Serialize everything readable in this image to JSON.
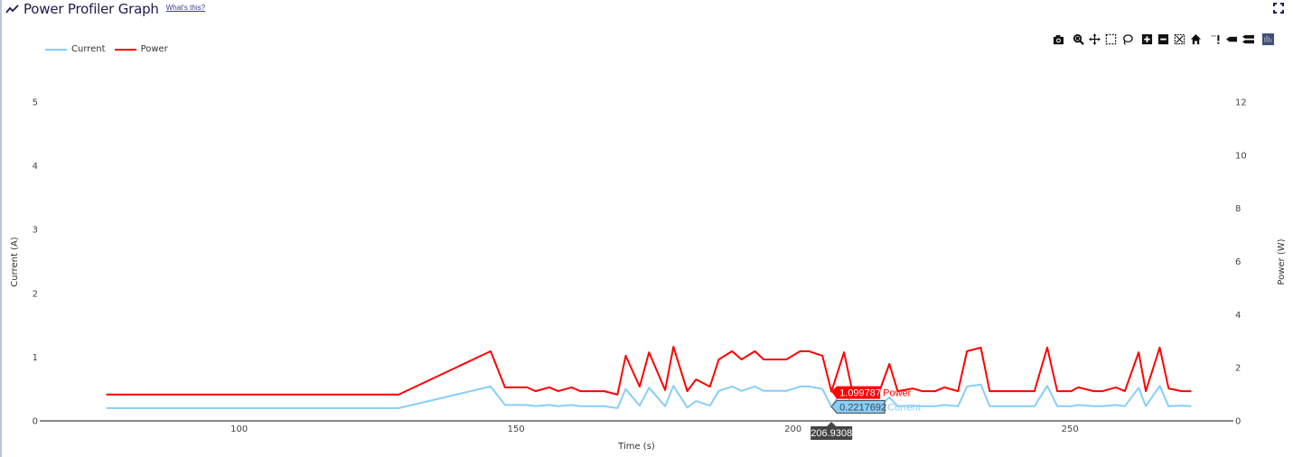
{
  "header": {
    "title": "Power Profiler Graph",
    "whats_this_link": "What's this?",
    "trend_icon": "trending-line-icon",
    "fullscreen_icon": "fullscreen-icon"
  },
  "legend": [
    {
      "label": "Current",
      "color": "#87cefa"
    },
    {
      "label": "Power",
      "color": "#ff0000"
    }
  ],
  "modebar": {
    "groups": [
      [
        {
          "name": "camera-icon",
          "title": "Download plot as a png"
        }
      ],
      [
        {
          "name": "zoom-icon",
          "title": "Zoom"
        },
        {
          "name": "pan-icon",
          "title": "Pan"
        },
        {
          "name": "box-select-icon",
          "title": "Box Select"
        },
        {
          "name": "lasso-select-icon",
          "title": "Lasso Select"
        }
      ],
      [
        {
          "name": "zoom-in-icon",
          "title": "Zoom in"
        },
        {
          "name": "zoom-out-icon",
          "title": "Zoom out"
        },
        {
          "name": "autoscale-icon",
          "title": "Autoscale"
        },
        {
          "name": "reset-axes-icon",
          "title": "Reset axes"
        }
      ],
      [
        {
          "name": "toggle-spikelines-icon",
          "title": "Toggle Spike Lines"
        },
        {
          "name": "hover-closest-icon",
          "title": "Show closest data on hover"
        },
        {
          "name": "hover-compare-icon",
          "title": "Compare data on hover"
        }
      ],
      [
        {
          "name": "plotly-logo-icon",
          "title": "Produced with Plotly"
        }
      ]
    ]
  },
  "hover": {
    "x_label": "206.9308",
    "power_value": "1.099787",
    "power_name": "Power",
    "current_value": "0.2217692",
    "current_name": "Current"
  },
  "colors": {
    "current": "#87cefa",
    "power": "#ff0000",
    "title": "#1e1a4d",
    "axis": "#444444",
    "hover_x_bg": "#444444"
  },
  "chart_data": {
    "type": "line",
    "title": "Power Profiler Graph",
    "xlabel": "Time (s)",
    "ylabel": "Current (A)",
    "y2label": "Power (W)",
    "xlim": [
      64,
      279.5
    ],
    "ylim": [
      0,
      5
    ],
    "y2lim": [
      0,
      12
    ],
    "xticks": [
      100,
      150,
      200,
      250
    ],
    "yticks": [
      0,
      1,
      2,
      3,
      4,
      5
    ],
    "y2ticks": [
      0,
      2,
      4,
      6,
      8,
      10,
      12
    ],
    "grid": false,
    "legend_position": "top-left",
    "x": [
      76.0,
      128.8,
      145.4,
      148.0,
      152.0,
      153.5,
      156.0,
      157.6,
      160.0,
      161.6,
      165.9,
      168.3,
      169.8,
      172.3,
      174.0,
      176.9,
      178.4,
      180.9,
      182.5,
      185.0,
      186.6,
      189.0,
      190.7,
      193.1,
      194.7,
      198.8,
      201.3,
      202.9,
      205.3,
      206.93,
      209.2,
      210.7,
      213.1,
      215.6,
      217.4,
      218.9,
      221.6,
      223.3,
      225.7,
      227.3,
      229.8,
      231.4,
      233.9,
      235.5,
      243.6,
      245.9,
      247.7,
      250.2,
      251.5,
      254.3,
      255.9,
      258.3,
      259.9,
      262.4,
      263.7,
      266.2,
      267.8,
      270.2,
      271.9
    ],
    "series": [
      {
        "name": "Current",
        "axis": "y",
        "color": "#87cefa",
        "values": [
          0.2,
          0.2,
          0.54,
          0.25,
          0.25,
          0.23,
          0.25,
          0.23,
          0.25,
          0.23,
          0.23,
          0.2,
          0.5,
          0.24,
          0.52,
          0.23,
          0.55,
          0.21,
          0.31,
          0.24,
          0.47,
          0.54,
          0.47,
          0.54,
          0.47,
          0.47,
          0.54,
          0.54,
          0.5,
          0.22,
          0.52,
          0.23,
          0.23,
          0.23,
          0.37,
          0.23,
          0.24,
          0.23,
          0.23,
          0.25,
          0.23,
          0.54,
          0.57,
          0.23,
          0.23,
          0.55,
          0.23,
          0.23,
          0.25,
          0.23,
          0.23,
          0.25,
          0.23,
          0.52,
          0.23,
          0.55,
          0.23,
          0.24,
          0.23
        ]
      },
      {
        "name": "Power",
        "axis": "y2",
        "color": "#ff0000",
        "values": [
          0.99,
          0.99,
          2.62,
          1.26,
          1.26,
          1.12,
          1.26,
          1.12,
          1.26,
          1.12,
          1.12,
          0.99,
          2.45,
          1.29,
          2.58,
          1.16,
          2.79,
          1.12,
          1.56,
          1.29,
          2.31,
          2.62,
          2.31,
          2.62,
          2.31,
          2.31,
          2.62,
          2.62,
          2.45,
          1.1,
          2.58,
          1.12,
          1.12,
          1.12,
          2.14,
          1.12,
          1.22,
          1.12,
          1.12,
          1.26,
          1.12,
          2.62,
          2.76,
          1.12,
          1.12,
          2.76,
          1.12,
          1.12,
          1.26,
          1.12,
          1.12,
          1.26,
          1.12,
          2.58,
          1.12,
          2.76,
          1.22,
          1.12,
          1.12
        ]
      }
    ],
    "annotations": [
      {
        "type": "hover",
        "x": 206.9308,
        "Power": 1.099787,
        "Current": 0.2217692
      }
    ]
  }
}
